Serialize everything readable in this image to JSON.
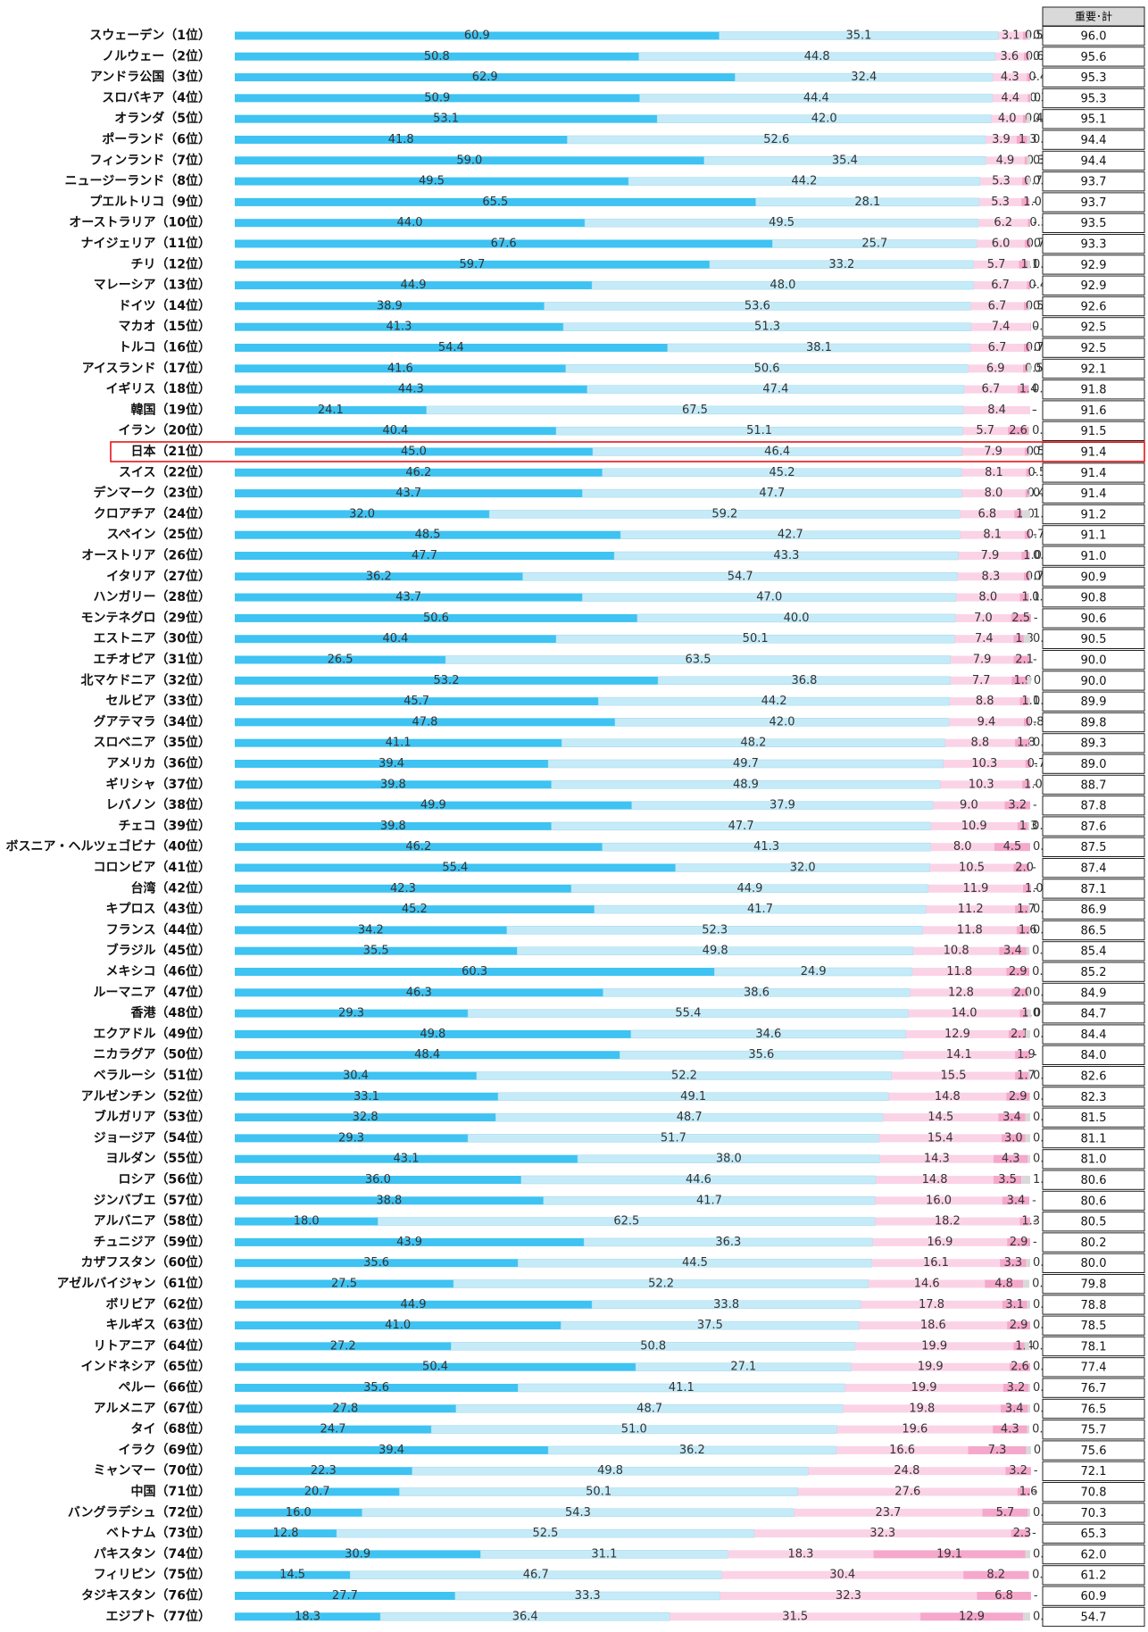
{
  "chart_data": {
    "type": "stacked_bar_horizontal",
    "categories": [
      "スウェーデン（1位）",
      "ノルウェー（2位）",
      "アンドラ公国（3位）",
      "スロバキア（4位）",
      "オランダ（5位）",
      "ポーランド（6位）",
      "フィンランド（7位）",
      "ニュージーランド（8位）",
      "プエルトリコ（9位）",
      "オーストラリア（10位）",
      "ナイジェリア（11位）",
      "チリ（12位）",
      "マレーシア（13位）",
      "ドイツ（14位）",
      "マカオ（15位）",
      "トルコ（16位）",
      "アイスランド（17位）",
      "イギリス（18位）",
      "韓国（19位）",
      "イラン（20位）",
      "日本（21位）",
      "スイス（22位）",
      "デンマーク（23位）",
      "クロアチア（24位）",
      "スペイン（25位）",
      "オーストリア（26位）",
      "イタリア（27位）",
      "ハンガリー（28位）",
      "モンテネグロ（29位）",
      "エストニア（30位）",
      "エチオピア（31位）",
      "北マケドニア（32位）",
      "セルビア（33位）",
      "グアテマラ（34位）",
      "スロベニア（35位）",
      "アメリカ（36位）",
      "ギリシャ（37位）",
      "レバノン（38位）",
      "チェコ（39位）",
      "ボスニア・ヘルツェゴビナ（40位）",
      "コロンビア（41位）",
      "台湾（42位）",
      "キプロス（43位）",
      "フランス（44位）",
      "ブラジル（45位）",
      "メキシコ（46位）",
      "ルーマニア（47位）",
      "香港（48位）",
      "エクアドル（49位）",
      "ニカラグア（50位）",
      "ベラルーシ（51位）",
      "アルゼンチン（52位）",
      "ブルガリア（53位）",
      "ジョージア（54位）",
      "ヨルダン（55位）",
      "ロシア（56位）",
      "ジンバブエ（57位）",
      "アルバニア（58位）",
      "チュニジア（59位）",
      "カザフスタン（60位）",
      "アゼルバイジャン（61位）",
      "ボリビア（62位）",
      "キルギス（63位）",
      "リトアニア（64位）",
      "インドネシア（65位）",
      "ペルー（66位）",
      "アルメニア（67位）",
      "タイ（68位）",
      "イラク（69位）",
      "ミャンマー（70位）",
      "中国（71位）",
      "バングラデシュ（72位）",
      "ベトナム（73位）",
      "パキスタン（74位）",
      "フィリピン（75位）",
      "タジキスタン（76位）",
      "エジプト（77位）"
    ],
    "xlim": [
      0,
      100
    ],
    "series": [
      {
        "color": "#3ec3f2",
        "values": [
          60.9,
          50.8,
          62.9,
          50.9,
          53.1,
          41.8,
          59.0,
          49.5,
          65.5,
          44.0,
          67.6,
          59.7,
          44.9,
          38.9,
          41.3,
          54.4,
          41.6,
          44.3,
          24.1,
          40.4,
          45.0,
          46.2,
          43.7,
          32.0,
          48.5,
          47.7,
          36.2,
          43.7,
          50.6,
          40.4,
          26.5,
          53.2,
          45.7,
          47.8,
          41.1,
          39.4,
          39.8,
          49.9,
          39.8,
          46.2,
          55.4,
          42.3,
          45.2,
          34.2,
          35.5,
          60.3,
          46.3,
          29.3,
          49.8,
          48.4,
          30.4,
          33.1,
          32.8,
          29.3,
          43.1,
          36.0,
          38.8,
          18.0,
          43.9,
          35.6,
          27.5,
          44.9,
          41.0,
          27.2,
          50.4,
          35.6,
          27.8,
          24.7,
          39.4,
          22.3,
          20.7,
          16.0,
          12.8,
          30.9,
          14.5,
          27.7,
          18.3
        ],
        "value_labels": [
          "60.9",
          "50.8",
          "62.9",
          "50.9",
          "53.1",
          "41.8",
          "59.0",
          "49.5",
          "65.5",
          "44.0",
          "67.6",
          "59.7",
          "44.9",
          "38.9",
          "41.3",
          "54.4",
          "41.6",
          "44.3",
          "24.1",
          "40.4",
          "45.0",
          "46.2",
          "43.7",
          "32.0",
          "48.5",
          "47.7",
          "36.2",
          "43.7",
          "50.6",
          "40.4",
          "26.5",
          "53.2",
          "45.7",
          "47.8",
          "41.1",
          "39.4",
          "39.8",
          "49.9",
          "39.8",
          "46.2",
          "55.4",
          "42.3",
          "45.2",
          "34.2",
          "35.5",
          "60.3",
          "46.3",
          "29.3",
          "49.8",
          "48.4",
          "30.4",
          "33.1",
          "32.8",
          "29.3",
          "43.1",
          "36.0",
          "38.8",
          "18.0",
          "43.9",
          "35.6",
          "27.5",
          "44.9",
          "41.0",
          "27.2",
          "50.4",
          "35.6",
          "27.8",
          "24.7",
          "39.4",
          "22.3",
          "20.7",
          "16.0",
          "12.8",
          "30.9",
          "14.5",
          "27.7",
          "18.3"
        ]
      },
      {
        "color": "#c6ebf8",
        "values": [
          35.1,
          44.8,
          32.4,
          44.4,
          42.0,
          52.6,
          35.4,
          44.2,
          28.1,
          49.5,
          25.7,
          33.2,
          48.0,
          53.6,
          51.3,
          38.1,
          50.6,
          47.4,
          67.5,
          51.1,
          46.4,
          45.2,
          47.7,
          59.2,
          42.7,
          43.3,
          54.7,
          47.0,
          40.0,
          50.1,
          63.5,
          36.8,
          44.2,
          42.0,
          48.2,
          49.7,
          48.9,
          37.9,
          47.7,
          41.3,
          32.0,
          44.9,
          41.7,
          52.3,
          49.8,
          24.9,
          38.6,
          55.4,
          34.6,
          35.6,
          52.2,
          49.1,
          48.7,
          51.7,
          38.0,
          44.6,
          41.7,
          62.5,
          36.3,
          44.5,
          52.2,
          33.8,
          37.5,
          50.8,
          27.1,
          41.1,
          48.7,
          51.0,
          36.2,
          49.8,
          50.1,
          54.3,
          52.5,
          31.1,
          46.7,
          33.3,
          36.4
        ],
        "value_labels": [
          "35.1",
          "44.8",
          "32.4",
          "44.4",
          "42.0",
          "52.6",
          "35.4",
          "44.2",
          "28.1",
          "49.5",
          "25.7",
          "33.2",
          "48.0",
          "53.6",
          "51.3",
          "38.1",
          "50.6",
          "47.4",
          "67.5",
          "51.1",
          "46.4",
          "45.2",
          "47.7",
          "59.2",
          "42.7",
          "43.3",
          "54.7",
          "47.0",
          "40.0",
          "50.1",
          "63.5",
          "36.8",
          "44.2",
          "42.0",
          "48.2",
          "49.7",
          "48.9",
          "37.9",
          "47.7",
          "41.3",
          "32.0",
          "44.9",
          "41.7",
          "52.3",
          "49.8",
          "24.9",
          "38.6",
          "55.4",
          "34.6",
          "35.6",
          "52.2",
          "49.1",
          "48.7",
          "51.7",
          "38.0",
          "44.6",
          "41.7",
          "62.5",
          "36.3",
          "44.5",
          "52.2",
          "33.8",
          "37.5",
          "50.8",
          "27.1",
          "41.1",
          "48.7",
          "51.0",
          "36.2",
          "49.8",
          "50.1",
          "54.3",
          "52.5",
          "31.1",
          "46.7",
          "33.3",
          "36.4"
        ]
      },
      {
        "color": "#fbd3e6",
        "values": [
          3.1,
          3.6,
          4.3,
          4.4,
          4.0,
          3.9,
          4.9,
          5.3,
          5.3,
          6.2,
          6.0,
          5.7,
          6.7,
          6.7,
          7.4,
          6.7,
          6.9,
          6.7,
          8.4,
          5.7,
          7.9,
          8.1,
          8.0,
          6.8,
          8.1,
          7.9,
          8.3,
          8.0,
          7.0,
          7.4,
          7.9,
          7.7,
          8.8,
          9.4,
          8.8,
          10.3,
          10.3,
          9.0,
          10.9,
          8.0,
          10.5,
          11.9,
          11.2,
          11.8,
          10.8,
          11.8,
          12.8,
          14.0,
          12.9,
          14.1,
          15.5,
          14.8,
          14.5,
          15.4,
          14.3,
          14.8,
          16.0,
          18.2,
          16.9,
          16.1,
          14.6,
          17.8,
          18.6,
          19.9,
          19.9,
          19.9,
          19.8,
          19.6,
          16.6,
          24.8,
          27.6,
          23.7,
          32.3,
          18.3,
          30.4,
          32.3,
          31.5
        ],
        "value_labels": [
          "3.1",
          "3.6",
          "4.3",
          "4.4",
          "4.0",
          "3.9",
          "4.9",
          "5.3",
          "5.3",
          "6.2",
          "6.0",
          "5.7",
          "6.7",
          "6.7",
          "7.4",
          "6.7",
          "6.9",
          "6.7",
          "8.4",
          "5.7",
          "7.9",
          "8.1",
          "8.0",
          "6.8",
          "8.1",
          "7.9",
          "8.3",
          "8.0",
          "7.0",
          "7.4",
          "7.9",
          "7.7",
          "8.8",
          "9.4",
          "8.8",
          "10.3",
          "10.3",
          "9.0",
          "10.9",
          "8.0",
          "10.5",
          "11.9",
          "11.2",
          "11.8",
          "10.8",
          "11.8",
          "12.8",
          "14.0",
          "12.9",
          "14.1",
          "15.5",
          "14.8",
          "14.5",
          "15.4",
          "14.3",
          "14.8",
          "16.0",
          "18.2",
          "16.9",
          "16.1",
          "14.6",
          "17.8",
          "18.6",
          "19.9",
          "19.9",
          "19.9",
          "19.8",
          "19.6",
          "16.6",
          "24.8",
          "27.6",
          "23.7",
          "32.3",
          "18.3",
          "30.4",
          "32.3",
          "31.5"
        ]
      },
      {
        "color": "#f5a8cb",
        "values": [
          0.5,
          0.6,
          0.4,
          0.3,
          0.4,
          1.3,
          0.3,
          0.7,
          1.0,
          0.3,
          0.7,
          1.1,
          0.4,
          0.5,
          0.1,
          0.7,
          0.5,
          1.4,
          null,
          2.6,
          0.5,
          0.5,
          0.4,
          1.0,
          0.7,
          1.0,
          0.7,
          1.1,
          2.5,
          1.3,
          2.1,
          1.9,
          1.1,
          0.8,
          1.8,
          0.7,
          1.0,
          3.2,
          1.3,
          4.5,
          2.0,
          1.0,
          1.7,
          1.6,
          3.4,
          2.9,
          2.0,
          1.0,
          2.1,
          1.9,
          1.7,
          2.9,
          3.4,
          3.0,
          4.3,
          3.5,
          3.4,
          1.3,
          2.9,
          3.3,
          4.8,
          3.1,
          2.9,
          1.4,
          2.6,
          3.2,
          3.4,
          4.3,
          7.3,
          3.2,
          1.6,
          5.7,
          2.3,
          19.1,
          8.2,
          6.8,
          12.9
        ],
        "value_labels": [
          "0.5",
          "0.6",
          "0.4",
          "0.3",
          "0.4",
          "1.3",
          "0.3",
          "0.7",
          "1.0",
          "0.3",
          "0.7",
          "1.1",
          "0.4",
          "0.5",
          "0.1",
          "0.7",
          "0.5",
          "1.4",
          "-",
          "2.6",
          "0.5",
          "0.5",
          "0.4",
          "1.0",
          "0.7",
          "1.0",
          "0.7",
          "1.1",
          "2.5",
          "1.3",
          "2.1",
          "1.9",
          "1.1",
          "0.8",
          "1.8",
          "0.7",
          "1.0",
          "3.2",
          "1.3",
          "4.5",
          "2.0",
          "1.0",
          "1.7",
          "1.6",
          "3.4",
          "2.9",
          "2.0",
          "1.0",
          "2.1",
          "1.9",
          "1.7",
          "2.9",
          "3.4",
          "3.0",
          "4.3",
          "3.5",
          "3.4",
          "1.3",
          "2.9",
          "3.3",
          "4.8",
          "3.1",
          "2.9",
          "1.4",
          "2.6",
          "3.2",
          "3.4",
          "4.3",
          "7.3",
          "3.2",
          "1.6",
          "5.7",
          "2.3",
          "19.1",
          "8.2",
          "6.8",
          "12.9"
        ]
      },
      {
        "color": "#d9d9d9",
        "values": [
          0.4,
          0.2,
          null,
          0.1,
          0.5,
          0.4,
          0.4,
          0.3,
          null,
          null,
          0.1,
          0.3,
          null,
          0.3,
          null,
          0.2,
          0.5,
          0.1,
          null,
          0.1,
          0.2,
          null,
          0.2,
          1.0,
          null,
          0.1,
          0.2,
          0.1,
          null,
          0.8,
          null,
          0.5,
          0.2,
          null,
          0.1,
          null,
          null,
          null,
          0.2,
          0.0,
          null,
          null,
          0.2,
          0.1,
          0.4,
          0.0,
          0.3,
          0.4,
          0.6,
          null,
          0.2,
          0.1,
          0.6,
          0.6,
          0.3,
          1.1,
          null,
          null,
          null,
          0.5,
          0.8,
          0.4,
          0.0,
          0.6,
          0.0,
          0.2,
          0.3,
          0.3,
          0.6,
          null,
          null,
          0.3,
          null,
          0.6,
          0.1,
          null,
          0.9
        ],
        "value_labels": [
          "0.4",
          "0.2",
          "-",
          "0.1",
          "0.5",
          "0.4",
          "0.4",
          "0.3",
          "-",
          "-",
          "0.1",
          "0.3",
          "-",
          "0.3",
          "-",
          "0.2",
          "0.5",
          "0.1",
          "-",
          "0.1",
          "0.2",
          "-",
          "0.2",
          "1.0",
          "-",
          "0.1",
          "0.2",
          "0.1",
          "-",
          "0.8",
          "-",
          "0.5",
          "0.2",
          "-",
          "0.1",
          "-",
          "-",
          "-",
          "0.2",
          "0.0",
          "-",
          "-",
          "0.2",
          "0.1",
          "0.4",
          "0.0",
          "0.3",
          "0.4",
          "0.6",
          "-",
          "0.2",
          "0.1",
          "0.6",
          "0.6",
          "0.3",
          "1.1",
          "-",
          "-",
          "-",
          "0.5",
          "0.8",
          "0.4",
          "0.0",
          "0.6",
          "0.0",
          "0.2",
          "0.3",
          "0.3",
          "0.6",
          "-",
          "-",
          "0.3",
          "-",
          "0.6",
          "0.1",
          "-",
          "0.9"
        ]
      }
    ],
    "total": {
      "title": "重要･計",
      "values": [
        96.0,
        95.6,
        95.3,
        95.3,
        95.1,
        94.4,
        94.4,
        93.7,
        93.7,
        93.5,
        93.3,
        92.9,
        92.9,
        92.6,
        92.5,
        92.5,
        92.1,
        91.8,
        91.6,
        91.5,
        91.4,
        91.4,
        91.4,
        91.2,
        91.1,
        91.0,
        90.9,
        90.8,
        90.6,
        90.5,
        90.0,
        90.0,
        89.9,
        89.8,
        89.3,
        89.0,
        88.7,
        87.8,
        87.6,
        87.5,
        87.4,
        87.1,
        86.9,
        86.5,
        85.4,
        85.2,
        84.9,
        84.7,
        84.4,
        84.0,
        82.6,
        82.3,
        81.5,
        81.1,
        81.0,
        80.6,
        80.6,
        80.5,
        80.2,
        80.0,
        79.8,
        78.8,
        78.5,
        78.1,
        77.4,
        76.7,
        76.5,
        75.7,
        75.6,
        72.1,
        70.8,
        70.3,
        65.3,
        62.0,
        61.2,
        60.9,
        54.7
      ],
      "value_labels": [
        "96.0",
        "95.6",
        "95.3",
        "95.3",
        "95.1",
        "94.4",
        "94.4",
        "93.7",
        "93.7",
        "93.5",
        "93.3",
        "92.9",
        "92.9",
        "92.6",
        "92.5",
        "92.5",
        "92.1",
        "91.8",
        "91.6",
        "91.5",
        "91.4",
        "91.4",
        "91.4",
        "91.2",
        "91.1",
        "91.0",
        "90.9",
        "90.8",
        "90.6",
        "90.5",
        "90.0",
        "90.0",
        "89.9",
        "89.8",
        "89.3",
        "89.0",
        "88.7",
        "87.8",
        "87.6",
        "87.5",
        "87.4",
        "87.1",
        "86.9",
        "86.5",
        "85.4",
        "85.2",
        "84.9",
        "84.7",
        "84.4",
        "84.0",
        "82.6",
        "82.3",
        "81.5",
        "81.1",
        "81.0",
        "80.6",
        "80.6",
        "80.5",
        "80.2",
        "80.0",
        "79.8",
        "78.8",
        "78.5",
        "78.1",
        "77.4",
        "76.7",
        "76.5",
        "75.7",
        "75.6",
        "72.1",
        "70.8",
        "70.3",
        "65.3",
        "62.0",
        "61.2",
        "60.9",
        "54.7"
      ]
    },
    "highlight": {
      "category": 20,
      "color": "#e8141b"
    }
  }
}
